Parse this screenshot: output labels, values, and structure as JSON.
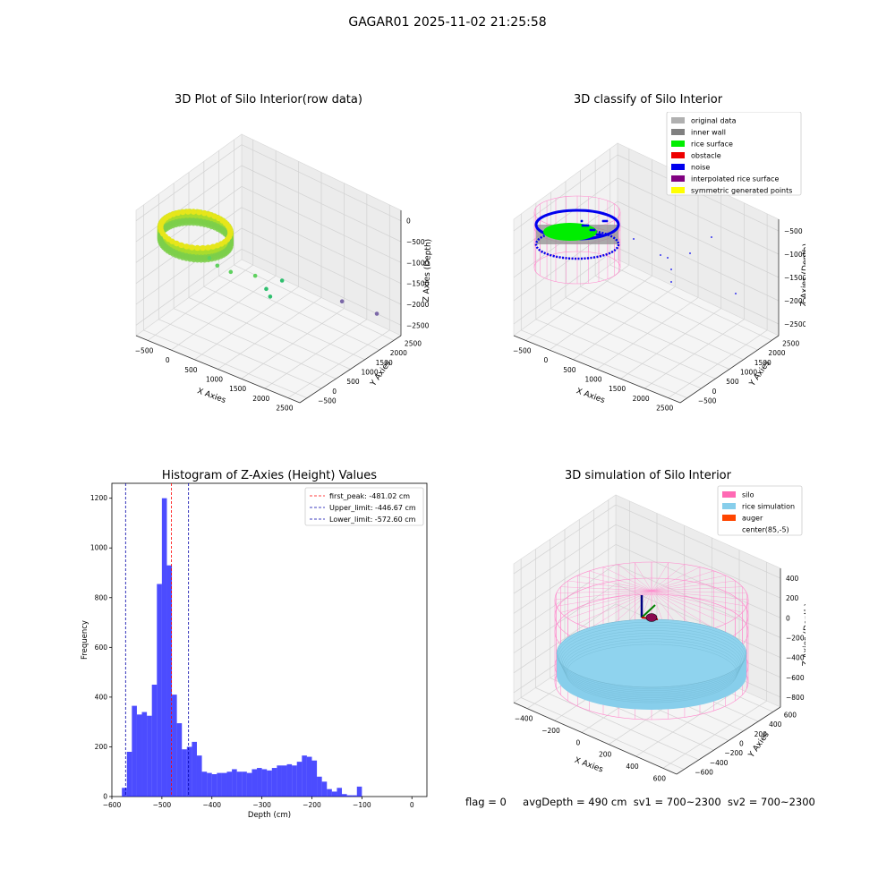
{
  "figure": {
    "suptitle": "GAGAR01 2025-11-02 21:25:58",
    "status": {
      "flag": "flag = 0",
      "avg_depth": "avgDepth = 490 cm",
      "sv1": "sv1 = 700~2300",
      "sv2": "sv2 = 700~2300"
    }
  },
  "chart_data": [
    {
      "type": "scatter",
      "projection": "3d",
      "title": "3D Plot of Silo Interior(row data)",
      "xlabel": "X Axies",
      "ylabel": "Y Axies",
      "zlabel": "Z Axies (Depth)",
      "x_ticks": [
        "−500",
        "0",
        "500",
        "1000",
        "1500",
        "2000",
        "2500"
      ],
      "y_ticks": [
        "−500",
        "0",
        "500",
        "1000",
        "1500",
        "2000",
        "2500"
      ],
      "z_ticks": [
        "0",
        "−500",
        "−1000",
        "−1500",
        "−2000",
        "−2500"
      ],
      "colormap": "viridis",
      "cluster": {
        "center_x": 85,
        "center_y": -5,
        "radius": 620,
        "z_range": [
          -300,
          -600
        ]
      },
      "outliers": [
        {
          "x": 500,
          "y": -200,
          "z": -700
        },
        {
          "x": 600,
          "y": -100,
          "z": -900
        },
        {
          "x": 750,
          "y": 100,
          "z": -1100
        },
        {
          "x": 1000,
          "y": 500,
          "z": -1300
        },
        {
          "x": 1100,
          "y": 700,
          "z": -1700
        },
        {
          "x": 1150,
          "y": 750,
          "z": -1900
        },
        {
          "x": 1300,
          "y": 900,
          "z": -1500
        },
        {
          "x": 1900,
          "y": 1900,
          "z": -2300
        },
        {
          "x": 2300,
          "y": 2400,
          "z": -2700
        }
      ]
    },
    {
      "type": "scatter",
      "projection": "3d",
      "title": "3D classify of Silo Interior",
      "xlabel": "X Axies",
      "ylabel": "Y Axies",
      "zlabel": "Z Axies (Depth)",
      "x_ticks": [
        "−500",
        "0",
        "500",
        "1000",
        "1500",
        "2000",
        "2500"
      ],
      "y_ticks": [
        "−500",
        "0",
        "500",
        "1000",
        "1500",
        "2000",
        "2500"
      ],
      "z_ticks": [
        "−500",
        "−1000",
        "−1500",
        "−2000",
        "−2500"
      ],
      "legend_position": "top-right",
      "legend": [
        {
          "label": "original data",
          "color": "#b0b0b0"
        },
        {
          "label": "inner wall",
          "color": "#808080"
        },
        {
          "label": "rice surface",
          "color": "#00ee00"
        },
        {
          "label": "obstacle",
          "color": "#ee0000"
        },
        {
          "label": "noise",
          "color": "#0000ee"
        },
        {
          "label": "interpolated rice surface",
          "color": "#800080"
        },
        {
          "label": "symmetric generated points",
          "color": "#ffff00"
        }
      ]
    },
    {
      "type": "bar",
      "subtype": "histogram",
      "title": "Histogram of Z-Axies (Height) Values",
      "xlabel": "Depth (cm)",
      "ylabel": "Frequency",
      "xlim": [
        -600,
        30
      ],
      "ylim": [
        0,
        1260
      ],
      "x_ticks": [
        -600,
        -500,
        -400,
        -300,
        -200,
        -100,
        0
      ],
      "y_ticks": [
        0,
        200,
        400,
        600,
        800,
        1000,
        1200
      ],
      "bar_color": "#0000ff",
      "bin_start": -580,
      "bin_width": 10,
      "values": [
        35,
        180,
        365,
        330,
        340,
        325,
        450,
        855,
        1200,
        930,
        410,
        295,
        190,
        200,
        220,
        165,
        100,
        95,
        90,
        95,
        95,
        100,
        110,
        100,
        100,
        95,
        110,
        115,
        110,
        105,
        115,
        125,
        125,
        130,
        125,
        140,
        165,
        160,
        145,
        80,
        60,
        30,
        20,
        35,
        10,
        5,
        5,
        40
      ],
      "lines": [
        {
          "label": "first_peak: -481.02 cm",
          "x": -481.02,
          "color": "#ff0000"
        },
        {
          "label": "Upper_limit: -446.67 cm",
          "x": -446.67,
          "color": "#0000aa"
        },
        {
          "label": "Lower_limit: -572.60 cm",
          "x": -572.6,
          "color": "#0000aa"
        }
      ],
      "legend_position": "top-right"
    },
    {
      "type": "scatter",
      "projection": "3d",
      "title": "3D simulation of Silo Interior",
      "xlabel": "X Axies",
      "ylabel": "Y Axies",
      "zlabel": "Z Axies (Depth)",
      "x_ticks": [
        "−400",
        "−200",
        "0",
        "200",
        "400",
        "600"
      ],
      "y_ticks": [
        "−600",
        "−400",
        "−200",
        "0",
        "200",
        "400",
        "600"
      ],
      "z_ticks": [
        "400",
        "200",
        "0",
        "−200",
        "−400",
        "−600",
        "−800"
      ],
      "legend_position": "top-right",
      "legend": [
        {
          "label": "silo",
          "color": "#ff69b4"
        },
        {
          "label": "rice simulation",
          "color": "#87ceeb"
        },
        {
          "label": "auger",
          "color": "#ff4500"
        },
        {
          "label": "center(85,-5)",
          "color": "#ffffff"
        }
      ]
    }
  ]
}
